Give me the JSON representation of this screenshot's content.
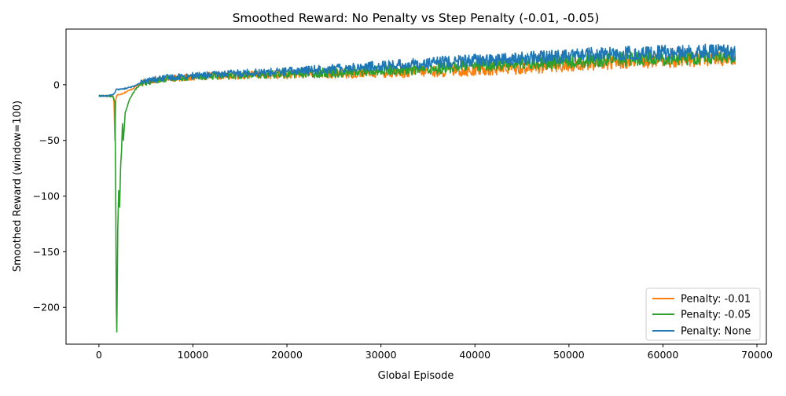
{
  "chart_data": {
    "type": "line",
    "title": "Smoothed Reward: No Penalty vs Step Penalty (-0.01, -0.05)",
    "xlabel": "Global Episode",
    "ylabel": "Smoothed Reward (window=100)",
    "xlim": [
      -3500,
      71000
    ],
    "ylim": [
      -233,
      50
    ],
    "x_ticks": [
      0,
      10000,
      20000,
      30000,
      40000,
      50000,
      60000,
      70000
    ],
    "x_tick_labels": [
      "0",
      "10000",
      "20000",
      "30000",
      "40000",
      "50000",
      "60000",
      "70000"
    ],
    "y_ticks": [
      0,
      -50,
      -100,
      -150,
      -200
    ],
    "y_tick_labels": [
      "0",
      "−50",
      "−100",
      "−150",
      "−200"
    ],
    "grid": false,
    "legend_position": "lower-right",
    "series": [
      {
        "name": "Penalty: -0.01",
        "color": "#ff7f0e",
        "x": [
          0,
          1000,
          1500,
          1600,
          1700,
          1750,
          1800,
          1900,
          2000,
          2500,
          3000,
          3500,
          4000,
          4500,
          5000,
          6000,
          8000,
          10000,
          12000,
          14000,
          16000,
          18000,
          20000,
          22000,
          24000,
          26000,
          28000,
          30000,
          32000,
          34000,
          36000,
          38000,
          40000,
          42000,
          44000,
          46000,
          48000,
          50000,
          52000,
          54000,
          56000,
          58000,
          60000,
          62000,
          64000,
          66000,
          67700
        ],
        "y": [
          -10,
          -10,
          -10,
          -15,
          -50,
          -30,
          -13,
          -10,
          -9,
          -8,
          -6,
          -4,
          -1,
          1,
          3,
          4,
          6,
          7,
          8,
          8,
          9,
          9,
          9,
          10,
          10,
          10,
          11,
          11,
          11,
          12,
          12,
          13,
          13,
          14,
          15,
          16,
          17,
          18,
          19,
          20,
          21,
          21,
          22,
          22,
          23,
          23,
          24
        ]
      },
      {
        "name": "Penalty: -0.05",
        "color": "#2ca02c",
        "x": [
          0,
          1000,
          1500,
          1700,
          1800,
          1850,
          1900,
          1950,
          2000,
          2100,
          2200,
          2300,
          2400,
          2500,
          2600,
          2800,
          3000,
          3300,
          3600,
          4000,
          4500,
          5000,
          6000,
          8000,
          10000,
          12000,
          14000,
          16000,
          18000,
          20000,
          22000,
          24000,
          26000,
          28000,
          30000,
          32000,
          34000,
          36000,
          38000,
          40000,
          42000,
          44000,
          46000,
          48000,
          50000,
          52000,
          54000,
          56000,
          58000,
          60000,
          62000,
          64000,
          66000,
          67700
        ],
        "y": [
          -10,
          -10,
          -11,
          -15,
          -120,
          -200,
          -222,
          -180,
          -130,
          -95,
          -110,
          -75,
          -60,
          -35,
          -50,
          -25,
          -20,
          -12,
          -8,
          -3,
          0,
          2,
          4,
          6,
          7,
          8,
          8,
          9,
          9,
          10,
          10,
          11,
          11,
          12,
          13,
          13,
          14,
          15,
          16,
          17,
          18,
          19,
          20,
          20,
          21,
          22,
          23,
          23,
          24,
          24,
          24,
          25,
          25,
          24
        ]
      },
      {
        "name": "Penalty: None",
        "color": "#1f77b4",
        "x": [
          0,
          1000,
          1500,
          1700,
          1800,
          1900,
          2000,
          2500,
          3000,
          3500,
          4000,
          4500,
          5000,
          6000,
          8000,
          10000,
          12000,
          14000,
          16000,
          18000,
          20000,
          22000,
          24000,
          26000,
          28000,
          30000,
          32000,
          34000,
          36000,
          38000,
          40000,
          42000,
          44000,
          46000,
          48000,
          50000,
          52000,
          54000,
          56000,
          58000,
          60000,
          62000,
          64000,
          66000,
          67700
        ],
        "y": [
          -10,
          -10,
          -9,
          -7,
          -5,
          -4,
          -4,
          -4,
          -3,
          -2,
          0,
          2,
          3,
          5,
          7,
          8,
          9,
          10,
          11,
          11,
          12,
          13,
          14,
          15,
          16,
          17,
          18,
          19,
          20,
          21,
          22,
          22,
          23,
          24,
          25,
          26,
          27,
          27,
          28,
          28,
          29,
          29,
          30,
          30,
          28
        ]
      }
    ]
  }
}
